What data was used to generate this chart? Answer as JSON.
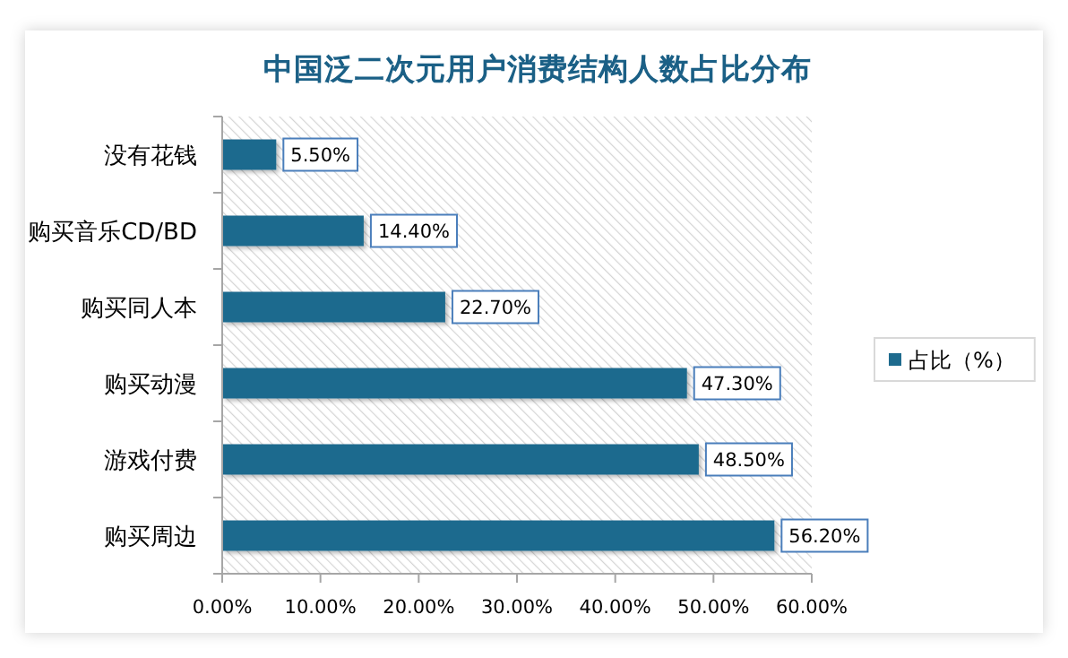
{
  "chart_data": {
    "type": "bar",
    "orientation": "horizontal",
    "title": "中国泛二次元用户消费结构人数占比分布",
    "categories": [
      "没有花钱",
      "购买音乐CD/BD",
      "购买同人本",
      "购买动漫",
      "游戏付费",
      "购买周边"
    ],
    "series": [
      {
        "name": "占比（%）",
        "color": "#1e6b8e",
        "values": [
          5.5,
          14.4,
          22.7,
          47.3,
          48.5,
          56.2
        ],
        "value_labels": [
          "5.50%",
          "14.40%",
          "22.70%",
          "47.30%",
          "48.50%",
          "56.20%"
        ]
      }
    ],
    "xlim": [
      0,
      60
    ],
    "xticks": [
      {
        "value": 0,
        "label": "0.00%"
      },
      {
        "value": 10,
        "label": "10.00%"
      },
      {
        "value": 20,
        "label": "20.00%"
      },
      {
        "value": 30,
        "label": "30.00%"
      },
      {
        "value": 40,
        "label": "40.00%"
      },
      {
        "value": 50,
        "label": "50.00%"
      },
      {
        "value": 60,
        "label": "60.00%"
      }
    ],
    "legend": "right"
  }
}
